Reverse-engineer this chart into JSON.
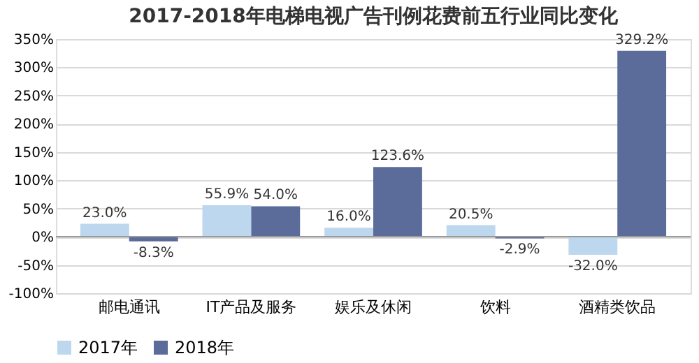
{
  "chart_data": {
    "type": "bar",
    "title": "2017-2018年电梯电视广告刊例花费前五行业同比变化",
    "categories": [
      "邮电通讯",
      "IT产品及服务",
      "娱乐及休闲",
      "饮料",
      "酒精类饮品"
    ],
    "series": [
      {
        "name": "2017年",
        "color": "#bdd7ee",
        "values": [
          23.0,
          55.9,
          16.0,
          20.5,
          -32.0
        ],
        "value_labels": [
          "23.0%",
          "55.9%",
          "16.0%",
          "20.5%",
          "-32.0%"
        ]
      },
      {
        "name": "2018年",
        "color": "#5b6b9a",
        "values": [
          -8.3,
          54.0,
          123.6,
          -2.9,
          329.2
        ],
        "value_labels": [
          "-8.3%",
          "54.0%",
          "123.6%",
          "-2.9%",
          "329.2%"
        ]
      }
    ],
    "ylim": [
      -100,
      350
    ],
    "yticks": [
      {
        "value": -100,
        "label": "-100%"
      },
      {
        "value": -50,
        "label": "-50%"
      },
      {
        "value": 0,
        "label": "0%"
      },
      {
        "value": 50,
        "label": "50%"
      },
      {
        "value": 100,
        "label": "100%"
      },
      {
        "value": 150,
        "label": "150%"
      },
      {
        "value": 200,
        "label": "200%"
      },
      {
        "value": 250,
        "label": "250%"
      },
      {
        "value": 300,
        "label": "300%"
      },
      {
        "value": 350,
        "label": "350%"
      }
    ],
    "grid": "y",
    "legend": "bottom"
  }
}
